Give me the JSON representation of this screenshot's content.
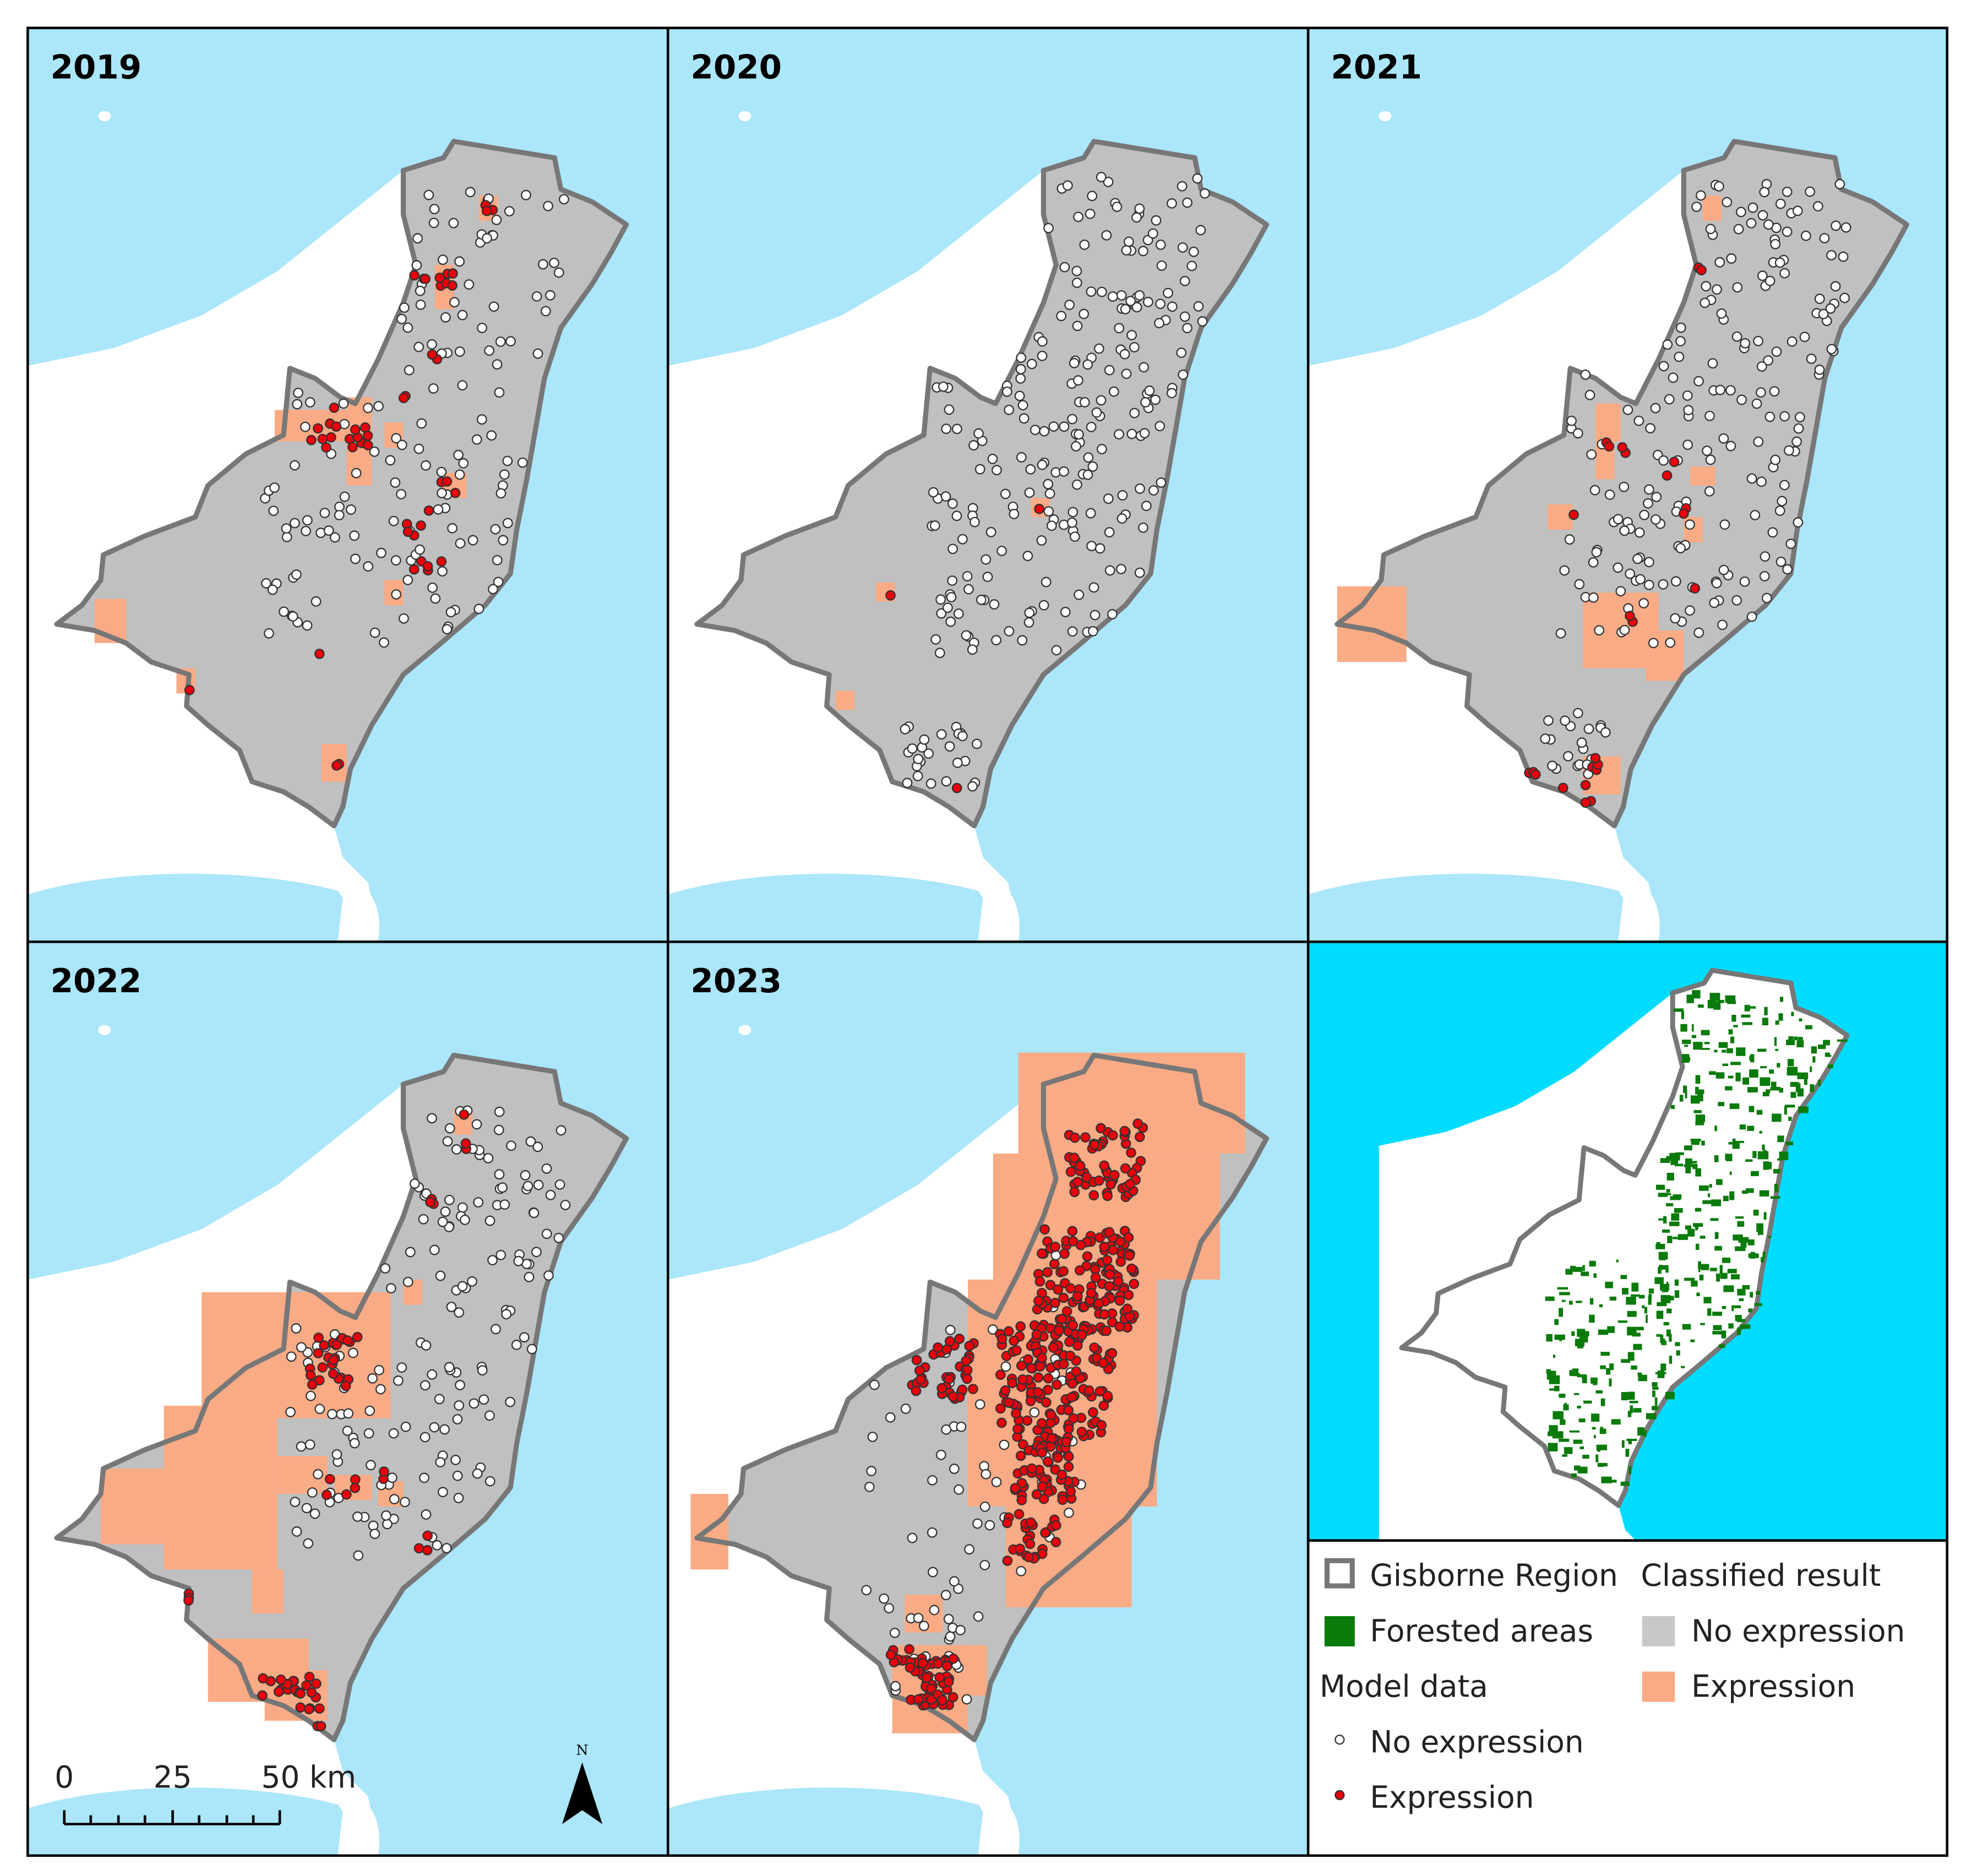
{
  "panels": [
    {
      "label": "2019"
    },
    {
      "label": "2020"
    },
    {
      "label": "2021"
    },
    {
      "label": "2022"
    },
    {
      "label": "2023"
    }
  ],
  "legend": {
    "region": "Gisborne Region",
    "forested": "Forested areas",
    "model_data": "Model data",
    "model_no": "No expression",
    "model_yes": "Expression",
    "classified": "Classified result",
    "class_no": "No expression",
    "class_yes": "Expression"
  },
  "scale_bar": {
    "labels": [
      "0",
      "25",
      "50 km"
    ]
  },
  "north": "N"
}
